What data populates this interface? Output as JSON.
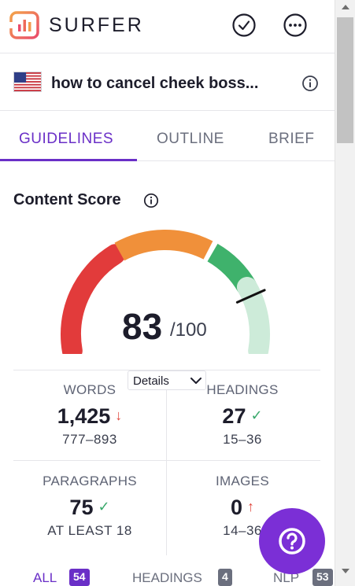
{
  "header": {
    "brand": "SURFER",
    "logo_icon": "surfer-logo-icon",
    "check_icon": "check-circle-icon",
    "more_icon": "more-horizontal-icon"
  },
  "keyword": {
    "flag_icon": "us-flag-icon",
    "text": "how to cancel cheek boss...",
    "info_icon": "info-icon"
  },
  "tabs": [
    {
      "label": "GUIDELINES",
      "active": true
    },
    {
      "label": "OUTLINE",
      "active": false
    },
    {
      "label": "BRIEF",
      "active": false
    }
  ],
  "content_score": {
    "title": "Content Score",
    "score": "83",
    "max": "/100",
    "score_value": 83,
    "details_label": "Details"
  },
  "stats": [
    {
      "label": "WORDS",
      "value": "1,425",
      "mark": "↓",
      "mark_type": "down",
      "range": "777–893"
    },
    {
      "label": "HEADINGS",
      "value": "27",
      "mark": "✓",
      "mark_type": "ok",
      "range": "15–36"
    },
    {
      "label": "PARAGRAPHS",
      "value": "75",
      "mark": "✓",
      "mark_type": "ok",
      "range": "AT LEAST 18"
    },
    {
      "label": "IMAGES",
      "value": "0",
      "mark": "↑",
      "mark_type": "up",
      "range": "14–36"
    }
  ],
  "filter_tabs": [
    {
      "label": "ALL",
      "count": "54",
      "active": true
    },
    {
      "label": "HEADINGS",
      "count": "4",
      "active": false
    },
    {
      "label": "NLP",
      "count": "53",
      "active": false
    }
  ],
  "help": {
    "icon": "question-icon"
  },
  "colors": {
    "accent": "#6a2fc7",
    "gauge_red": "#e23b3b",
    "gauge_orange": "#f0903a",
    "gauge_green": "#3fb26c",
    "gauge_light_green": "#cdebd9"
  }
}
